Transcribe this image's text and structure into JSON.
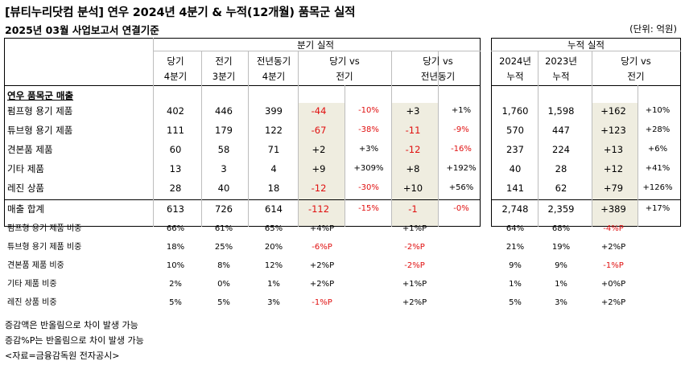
{
  "title": "[뷰티누리닷컴 분석] 연우 2024년 4분기 & 누적(12개월) 품목군 실적",
  "subtitle": "2025년 03월 사업보고서 연결기준",
  "unit": "(단위: 억원)",
  "header": {
    "quarter_group": "분기 실적",
    "cumul_group": "누적 실적",
    "cols": [
      [
        "당기",
        "4분기"
      ],
      [
        "전기",
        "3분기"
      ],
      [
        "전년동기",
        "4분기"
      ],
      [
        "당기 vs",
        "전기"
      ],
      [
        "당기 vs",
        "전년동기"
      ],
      [
        "2024년",
        "누적"
      ],
      [
        "2023년",
        "누적"
      ],
      [
        "당기 vs",
        "전기"
      ]
    ]
  },
  "section_title": "연우 품목군 매출",
  "rows": [
    {
      "label": "펌프형 용기 제품",
      "cur": "402",
      "prev": "446",
      "yoy": "399",
      "qd": "-44",
      "qp": "-10%",
      "yd": "+3",
      "yp": "+1%",
      "c24": "1,760",
      "c23": "1,598",
      "cd": "+162",
      "cp": "+10%"
    },
    {
      "label": "튜브형 용기 제품",
      "cur": "111",
      "prev": "179",
      "yoy": "122",
      "qd": "-67",
      "qp": "-38%",
      "yd": "-11",
      "yp": "-9%",
      "c24": "570",
      "c23": "447",
      "cd": "+123",
      "cp": "+28%"
    },
    {
      "label": "견본품 제품",
      "cur": "60",
      "prev": "58",
      "yoy": "71",
      "qd": "+2",
      "qp": "+3%",
      "yd": "-12",
      "yp": "-16%",
      "c24": "237",
      "c23": "224",
      "cd": "+13",
      "cp": "+6%"
    },
    {
      "label": "기타 제품",
      "cur": "13",
      "prev": "3",
      "yoy": "4",
      "qd": "+9",
      "qp": "+309%",
      "yd": "+8",
      "yp": "+192%",
      "c24": "40",
      "c23": "28",
      "cd": "+12",
      "cp": "+41%"
    },
    {
      "label": "레진 상품",
      "cur": "28",
      "prev": "40",
      "yoy": "18",
      "qd": "-12",
      "qp": "-30%",
      "yd": "+10",
      "yp": "+56%",
      "c24": "141",
      "c23": "62",
      "cd": "+79",
      "cp": "+126%"
    }
  ],
  "total": {
    "label": "매출 합계",
    "cur": "613",
    "prev": "726",
    "yoy": "614",
    "qd": "-112",
    "qp": "-15%",
    "yd": "-1",
    "yp": "-0%",
    "c24": "2,748",
    "c23": "2,359",
    "cd": "+389",
    "cp": "+17%"
  },
  "ratios": [
    {
      "label": "펌프형 용기 제품 비중",
      "cur": "66%",
      "prev": "61%",
      "yoy": "65%",
      "qp": "+4%P",
      "yp": "+1%P",
      "c24": "64%",
      "c23": "68%",
      "cp": "-4%P"
    },
    {
      "label": "튜브형 용기 제품 비중",
      "cur": "18%",
      "prev": "25%",
      "yoy": "20%",
      "qp": "-6%P",
      "yp": "-2%P",
      "c24": "21%",
      "c23": "19%",
      "cp": "+2%P"
    },
    {
      "label": "견본품 제품 비중",
      "cur": "10%",
      "prev": "8%",
      "yoy": "12%",
      "qp": "+2%P",
      "yp": "-2%P",
      "c24": "9%",
      "c23": "9%",
      "cp": "-1%P"
    },
    {
      "label": "기타 제품 비중",
      "cur": "2%",
      "prev": "0%",
      "yoy": "1%",
      "qp": "+2%P",
      "yp": "+1%P",
      "c24": "1%",
      "c23": "1%",
      "cp": "+0%P"
    },
    {
      "label": "레진 상품 비중",
      "cur": "5%",
      "prev": "5%",
      "yoy": "3%",
      "qp": "-1%P",
      "yp": "+2%P",
      "c24": "5%",
      "c23": "3%",
      "cp": "+2%P"
    }
  ],
  "footnotes": [
    "증감액은 반올림으로 차이 발생 가능",
    "증감%P는 반올림으로 차이 발생 가능",
    "<자료=금융감독원 전자공시>"
  ],
  "colors": {
    "negative": "#e01010",
    "highlight": "#efede0"
  }
}
